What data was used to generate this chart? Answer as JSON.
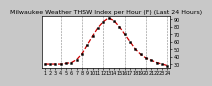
{
  "title": "Milwaukee Weather THSW Index per Hour (F) (Last 24 Hours)",
  "hours": [
    1,
    2,
    3,
    4,
    5,
    6,
    7,
    8,
    9,
    10,
    11,
    12,
    13,
    14,
    15,
    16,
    17,
    18,
    19,
    20,
    21,
    22,
    23,
    24
  ],
  "values": [
    30,
    30,
    30,
    30,
    31,
    32,
    36,
    44,
    56,
    68,
    79,
    87,
    92,
    88,
    80,
    70,
    60,
    50,
    43,
    38,
    35,
    32,
    30,
    28
  ],
  "line_color": "#cc0000",
  "marker_color": "#000000",
  "bg_color": "#c8c8c8",
  "plot_bg_color": "#ffffff",
  "grid_color": "#888888",
  "ylim_min": 25,
  "ylim_max": 95,
  "yticks": [
    30,
    40,
    50,
    60,
    70,
    80,
    90
  ],
  "grid_hours": [
    4,
    8,
    12,
    16,
    20,
    24
  ],
  "title_fontsize": 4.5,
  "tick_fontsize": 3.5
}
